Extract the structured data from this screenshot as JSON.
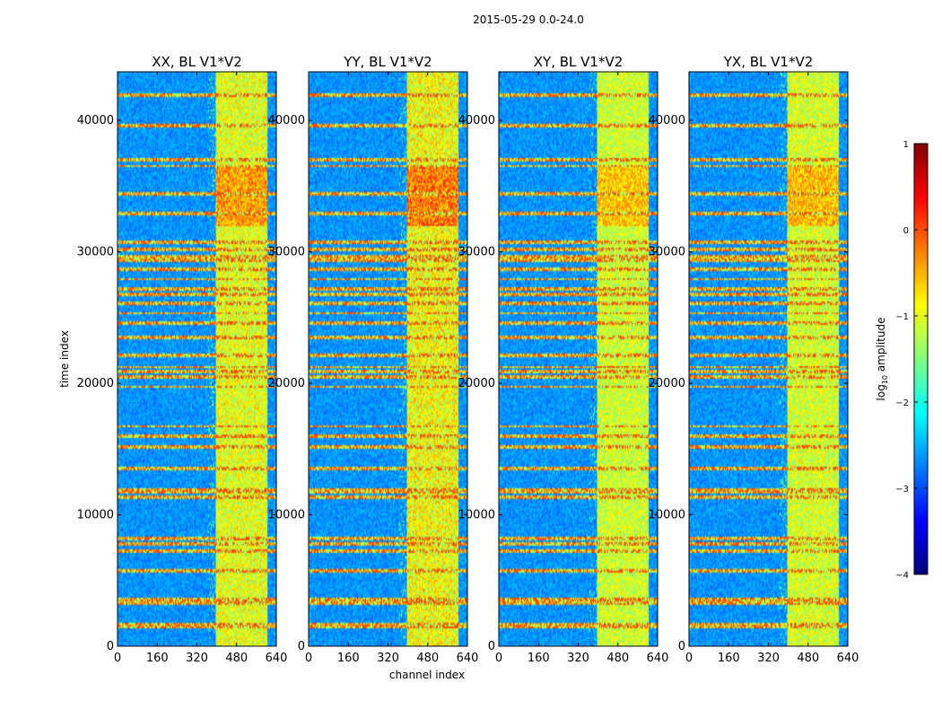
{
  "figure": {
    "suptitle": "2015-05-29 0.0-24.0",
    "xlabel": "channel index",
    "ylabel": "time index"
  },
  "colorbar": {
    "label_prefix": "log",
    "label_sub": "10",
    "label_suffix": " amplitude",
    "range": [
      -4,
      1
    ],
    "ticks": [
      1,
      0,
      -1,
      -2,
      -3,
      -4
    ],
    "tick_labels": [
      "1",
      "0",
      "−1",
      "−2",
      "−3",
      "−4"
    ],
    "colormap": "jet",
    "colors": [
      "#00007f",
      "#0000ff",
      "#007fff",
      "#00ffff",
      "#7fff7f",
      "#ffff00",
      "#ff7f00",
      "#ff0000",
      "#7f0000"
    ]
  },
  "chart_data": {
    "type": "heatmap",
    "colormap": "jet",
    "x_ticks": [
      0,
      160,
      320,
      480,
      640
    ],
    "y_ticks": [
      0,
      10000,
      20000,
      30000,
      40000
    ],
    "xlim": [
      0,
      640
    ],
    "ylim": [
      0,
      43700
    ],
    "panels": [
      {
        "title": "XX, BL V1*V2",
        "intensity": 1.0
      },
      {
        "title": "YY, BL V1*V2",
        "intensity": 1.12
      },
      {
        "title": "XY, BL V1*V2",
        "intensity": 0.85
      },
      {
        "title": "YX, BL V1*V2",
        "intensity": 0.9
      }
    ],
    "high_amplitude_band_channels": [
      395,
      600
    ],
    "flagged_rows_time_index": [
      1500,
      1700,
      3400,
      3600,
      5800,
      7300,
      7900,
      8300,
      11400,
      11800,
      12000,
      13600,
      15200,
      16000,
      16800,
      19800,
      20500,
      21000,
      21300,
      22200,
      23600,
      24700,
      25400,
      26100,
      26800,
      27200,
      28000,
      28800,
      29400,
      29700,
      30300,
      30800,
      33000,
      34500,
      36600,
      37100,
      39700,
      42000
    ]
  }
}
